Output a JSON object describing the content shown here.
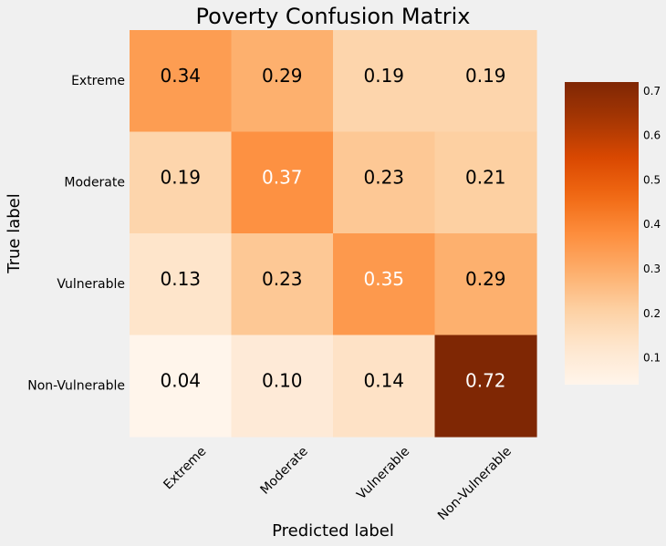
{
  "chart_data": {
    "type": "heatmap",
    "title": "Poverty Confusion Matrix",
    "xlabel": "Predicted label",
    "ylabel": "True label",
    "x_categories": [
      "Extreme",
      "Moderate",
      "Vulnerable",
      "Non-Vulnerable"
    ],
    "y_categories": [
      "Extreme",
      "Moderate",
      "Vulnerable",
      "Non-Vulnerable"
    ],
    "values": [
      [
        0.34,
        0.29,
        0.19,
        0.19
      ],
      [
        0.19,
        0.37,
        0.23,
        0.21
      ],
      [
        0.13,
        0.23,
        0.35,
        0.29
      ],
      [
        0.04,
        0.1,
        0.14,
        0.72
      ]
    ],
    "cell_labels": [
      [
        "0.34",
        "0.29",
        "0.19",
        "0.19"
      ],
      [
        "0.19",
        "0.37",
        "0.23",
        "0.21"
      ],
      [
        "0.13",
        "0.23",
        "0.35",
        "0.29"
      ],
      [
        "0.04",
        "0.10",
        "0.14",
        "0.72"
      ]
    ],
    "colormap": "Oranges",
    "colorbar": {
      "vmin": 0.04,
      "vmax": 0.72,
      "ticks": [
        0.1,
        0.2,
        0.3,
        0.4,
        0.5,
        0.6,
        0.7
      ],
      "tick_labels": [
        "0.1",
        "0.2",
        "0.3",
        "0.4",
        "0.5",
        "0.6",
        "0.7"
      ]
    },
    "grid": false
  }
}
